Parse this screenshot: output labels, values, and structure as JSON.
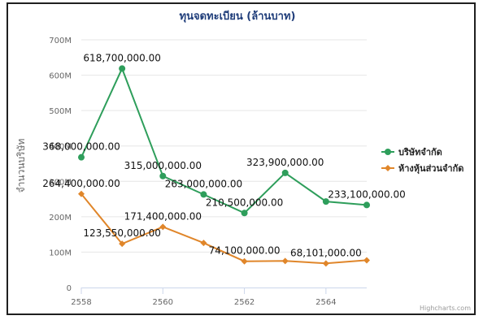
{
  "chart_data": {
    "type": "line",
    "title": "ทุนจดทะเบียน (ล้านบาท)",
    "ylabel": "จำนวนบริษัท",
    "xlabel": "",
    "x": [
      2558,
      2559,
      2560,
      2561,
      2562,
      2563,
      2564,
      2565
    ],
    "x_ticks": [
      "2558",
      "2560",
      "2562",
      "2564"
    ],
    "y_ticks": [
      "0",
      "100M",
      "200M",
      "300M",
      "400M",
      "500M",
      "600M",
      "700M"
    ],
    "ylim": [
      0,
      700000000
    ],
    "xlim": [
      2558,
      2565
    ],
    "grid": "horizontal",
    "legend_position": "right",
    "series": [
      {
        "name": "บริษัทจำกัด",
        "color": "#2e9e5b",
        "marker": "circle",
        "values": [
          368000000,
          618700000,
          315000000,
          263000000,
          210500000,
          323900000,
          243000000,
          233100000
        ],
        "labels": [
          "368,000,000.00",
          "618,700,000.00",
          "315,000,000.00",
          "263,000,000.00",
          "210,500,000.00",
          "323,900,000.00",
          null,
          "233,100,000.00"
        ]
      },
      {
        "name": "ห้างหุ้นส่วนจำกัด",
        "color": "#e0862a",
        "marker": "diamond",
        "values": [
          264400000,
          123550000,
          171400000,
          126000000,
          74100000,
          75000000,
          68101000,
          77000000
        ],
        "labels": [
          "264,400,000.00",
          "123,550,000.00",
          "171,400,000.00",
          null,
          "74,100,000.00",
          null,
          "68,101,000.00",
          null
        ]
      }
    ],
    "credits": "Highcharts.com"
  }
}
